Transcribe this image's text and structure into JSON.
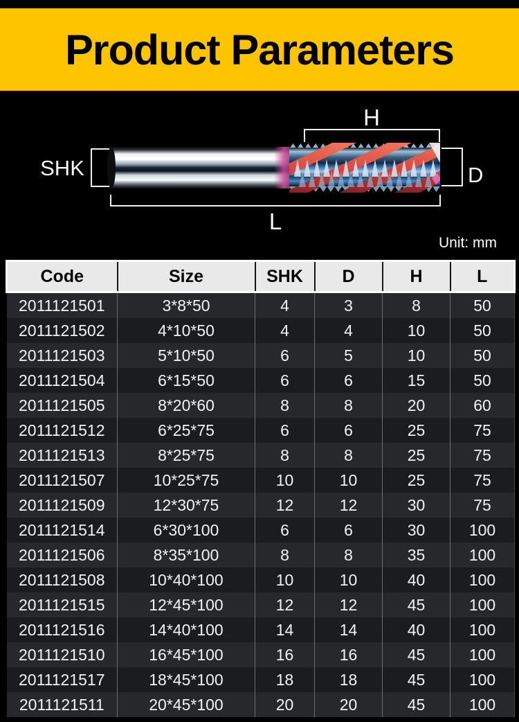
{
  "banner": {
    "title": "Product Parameters",
    "bg_color": "#ffc400",
    "text_color": "#000000"
  },
  "diagram": {
    "labels": {
      "shk": "SHK",
      "h": "H",
      "d": "D",
      "l": "L"
    },
    "unit_note": "Unit: mm",
    "colors": {
      "dimension_lines": "#f0f0f0",
      "shank_chrome_highlight": "#ffffff",
      "shank_core_dark": "#16212e",
      "flute_blue": "#3a71ad",
      "flute_red_stripe": "#d84a42",
      "transition_pink": "#c94a9b"
    }
  },
  "table": {
    "columns": [
      "Code",
      "Size",
      "SHK",
      "D",
      "H",
      "L"
    ],
    "rows": [
      [
        "2011121501",
        "3*8*50",
        "4",
        "3",
        "8",
        "50"
      ],
      [
        "2011121502",
        "4*10*50",
        "4",
        "4",
        "10",
        "50"
      ],
      [
        "2011121503",
        "5*10*50",
        "6",
        "5",
        "10",
        "50"
      ],
      [
        "2011121504",
        "6*15*50",
        "6",
        "6",
        "15",
        "50"
      ],
      [
        "2011121505",
        "8*20*60",
        "8",
        "8",
        "20",
        "60"
      ],
      [
        "2011121512",
        "6*25*75",
        "6",
        "6",
        "25",
        "75"
      ],
      [
        "2011121513",
        "8*25*75",
        "8",
        "8",
        "25",
        "75"
      ],
      [
        "2011121507",
        "10*25*75",
        "10",
        "10",
        "25",
        "75"
      ],
      [
        "2011121509",
        "12*30*75",
        "12",
        "12",
        "30",
        "75"
      ],
      [
        "2011121514",
        "6*30*100",
        "6",
        "6",
        "30",
        "100"
      ],
      [
        "2011121506",
        "8*35*100",
        "8",
        "8",
        "35",
        "100"
      ],
      [
        "2011121508",
        "10*40*100",
        "10",
        "10",
        "40",
        "100"
      ],
      [
        "2011121515",
        "12*45*100",
        "12",
        "12",
        "45",
        "100"
      ],
      [
        "2011121516",
        "14*40*100",
        "14",
        "14",
        "40",
        "100"
      ],
      [
        "2011121510",
        "16*45*100",
        "16",
        "16",
        "45",
        "100"
      ],
      [
        "2011121517",
        "18*45*100",
        "18",
        "18",
        "45",
        "100"
      ],
      [
        "2011121511",
        "20*45*100",
        "20",
        "20",
        "45",
        "100"
      ]
    ],
    "row_colors": {
      "odd": "#26282b",
      "even": "#1b1c1f",
      "header_bg": "#e9e9e9"
    }
  }
}
